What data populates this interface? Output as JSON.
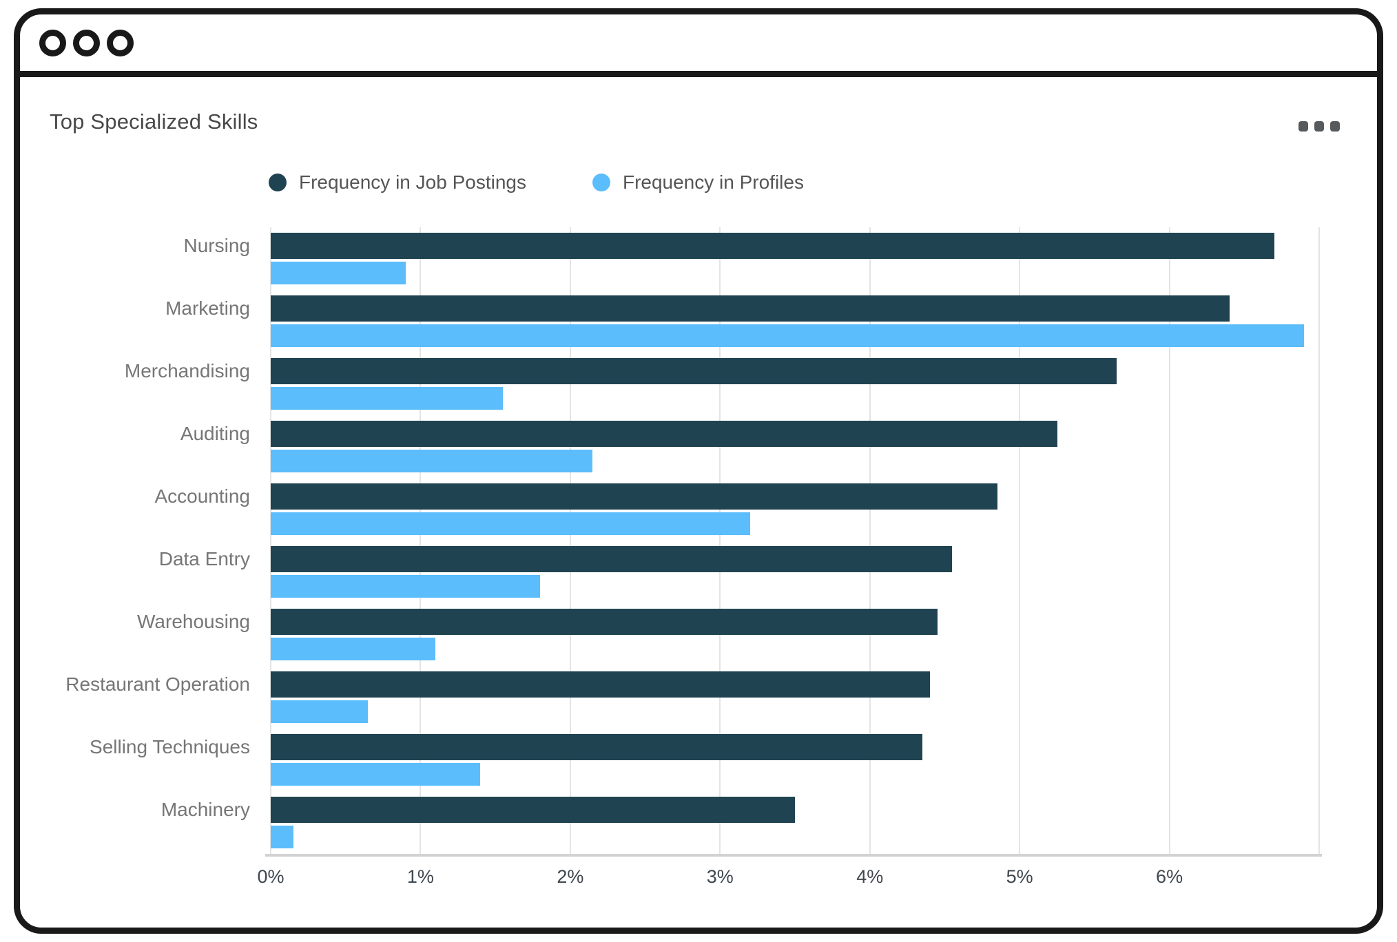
{
  "header": {
    "title": "Top Specialized Skills"
  },
  "legend": {
    "items": [
      {
        "label": "Frequency in Job Postings",
        "color": "#204351"
      },
      {
        "label": "Frequency in Profiles",
        "color": "#5bbdfc"
      }
    ]
  },
  "chart_data": {
    "type": "bar",
    "orientation": "horizontal",
    "title": "Top Specialized Skills",
    "categories": [
      "Nursing",
      "Marketing",
      "Merchandising",
      "Auditing",
      "Accounting",
      "Data Entry",
      "Warehousing",
      "Restaurant Operation",
      "Selling Techniques",
      "Machinery"
    ],
    "series": [
      {
        "name": "Frequency in Job Postings",
        "color": "#204351",
        "values": [
          6.7,
          6.4,
          5.65,
          5.25,
          4.85,
          4.55,
          4.45,
          4.4,
          4.35,
          3.5
        ]
      },
      {
        "name": "Frequency in Profiles",
        "color": "#5bbdfc",
        "values": [
          0.9,
          6.9,
          1.55,
          2.15,
          3.2,
          1.8,
          1.1,
          0.65,
          1.4,
          0.15
        ]
      }
    ],
    "x_ticks": [
      "0%",
      "1%",
      "2%",
      "3%",
      "4%",
      "5%",
      "6%"
    ],
    "xlim": [
      0,
      7
    ],
    "unit": "%",
    "grid": true,
    "legend_position": "top"
  },
  "colors": {
    "gridline": "#e4e4e4",
    "axis_line": "#d2d2d2",
    "category_label": "#767676",
    "tick_label": "#3f474e",
    "window_border": "#191919",
    "menu_dots": "#565a5c"
  }
}
